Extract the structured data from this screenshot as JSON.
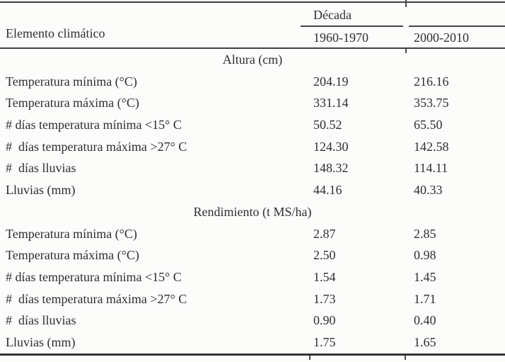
{
  "page": {
    "background": "#fcfcfb",
    "text_color": "#2e2e2e",
    "rule_color": "#3f3f3f"
  },
  "table": {
    "header": {
      "row_label": "Elemento climático",
      "group_label": "Década",
      "columns": [
        "1960-1970",
        "2000-2010"
      ]
    },
    "sections": [
      {
        "title": "Altura (cm)",
        "rows": [
          {
            "label": "Temperatura mínima (°C)",
            "values": [
              "204.19",
              "216.16"
            ]
          },
          {
            "label": "Temperatura máxima (°C)",
            "values": [
              "331.14",
              "353.75"
            ]
          },
          {
            "label": "# días temperatura mínima <15° C",
            "values": [
              "50.52",
              "65.50"
            ]
          },
          {
            "label": "#  días temperatura máxima >27° C",
            "values": [
              "124.30",
              "142.58"
            ]
          },
          {
            "label": "#  días lluvias",
            "values": [
              "148.32",
              "114.11"
            ]
          },
          {
            "label": "Lluvias (mm)",
            "values": [
              "44.16",
              "40.33"
            ]
          }
        ]
      },
      {
        "title": "Rendimiento (t MS/ha)",
        "rows": [
          {
            "label": "Temperatura mínima (°C)",
            "values": [
              "2.87",
              "2.85"
            ]
          },
          {
            "label": "Temperatura máxima (°C)",
            "values": [
              "2.50",
              "0.98"
            ]
          },
          {
            "label": "# días temperatura mínima <15° C",
            "values": [
              "1.54",
              "1.45"
            ]
          },
          {
            "label": "#  días temperatura máxima >27° C",
            "values": [
              "1.73",
              "1.71"
            ]
          },
          {
            "label": "#  días lluvias",
            "values": [
              "0.90",
              "0.40"
            ]
          },
          {
            "label": "Lluvias (mm)",
            "values": [
              "1.75",
              "1.65"
            ]
          }
        ]
      }
    ]
  },
  "chart_data": {
    "type": "table",
    "title": "",
    "row_header": "Elemento climático",
    "column_group": "Década",
    "columns": [
      "1960-1970",
      "2000-2010"
    ],
    "sections": [
      {
        "name": "Altura (cm)",
        "rows": [
          {
            "element": "Temperatura mínima (°C)",
            "1960-1970": 204.19,
            "2000-2010": 216.16
          },
          {
            "element": "Temperatura máxima (°C)",
            "1960-1970": 331.14,
            "2000-2010": 353.75
          },
          {
            "element": "# días temperatura mínima <15° C",
            "1960-1970": 50.52,
            "2000-2010": 65.5
          },
          {
            "element": "# días temperatura máxima >27° C",
            "1960-1970": 124.3,
            "2000-2010": 142.58
          },
          {
            "element": "# días lluvias",
            "1960-1970": 148.32,
            "2000-2010": 114.11
          },
          {
            "element": "Lluvias (mm)",
            "1960-1970": 44.16,
            "2000-2010": 40.33
          }
        ]
      },
      {
        "name": "Rendimiento (t MS/ha)",
        "rows": [
          {
            "element": "Temperatura mínima (°C)",
            "1960-1970": 2.87,
            "2000-2010": 2.85
          },
          {
            "element": "Temperatura máxima (°C)",
            "1960-1970": 2.5,
            "2000-2010": 0.98
          },
          {
            "element": "# días temperatura mínima <15° C",
            "1960-1970": 1.54,
            "2000-2010": 1.45
          },
          {
            "element": "# días temperatura máxima >27° C",
            "1960-1970": 1.73,
            "2000-2010": 1.71
          },
          {
            "element": "# días lluvias",
            "1960-1970": 0.9,
            "2000-2010": 0.4
          },
          {
            "element": "Lluvias (mm)",
            "1960-1970": 1.75,
            "2000-2010": 1.65
          }
        ]
      }
    ]
  }
}
